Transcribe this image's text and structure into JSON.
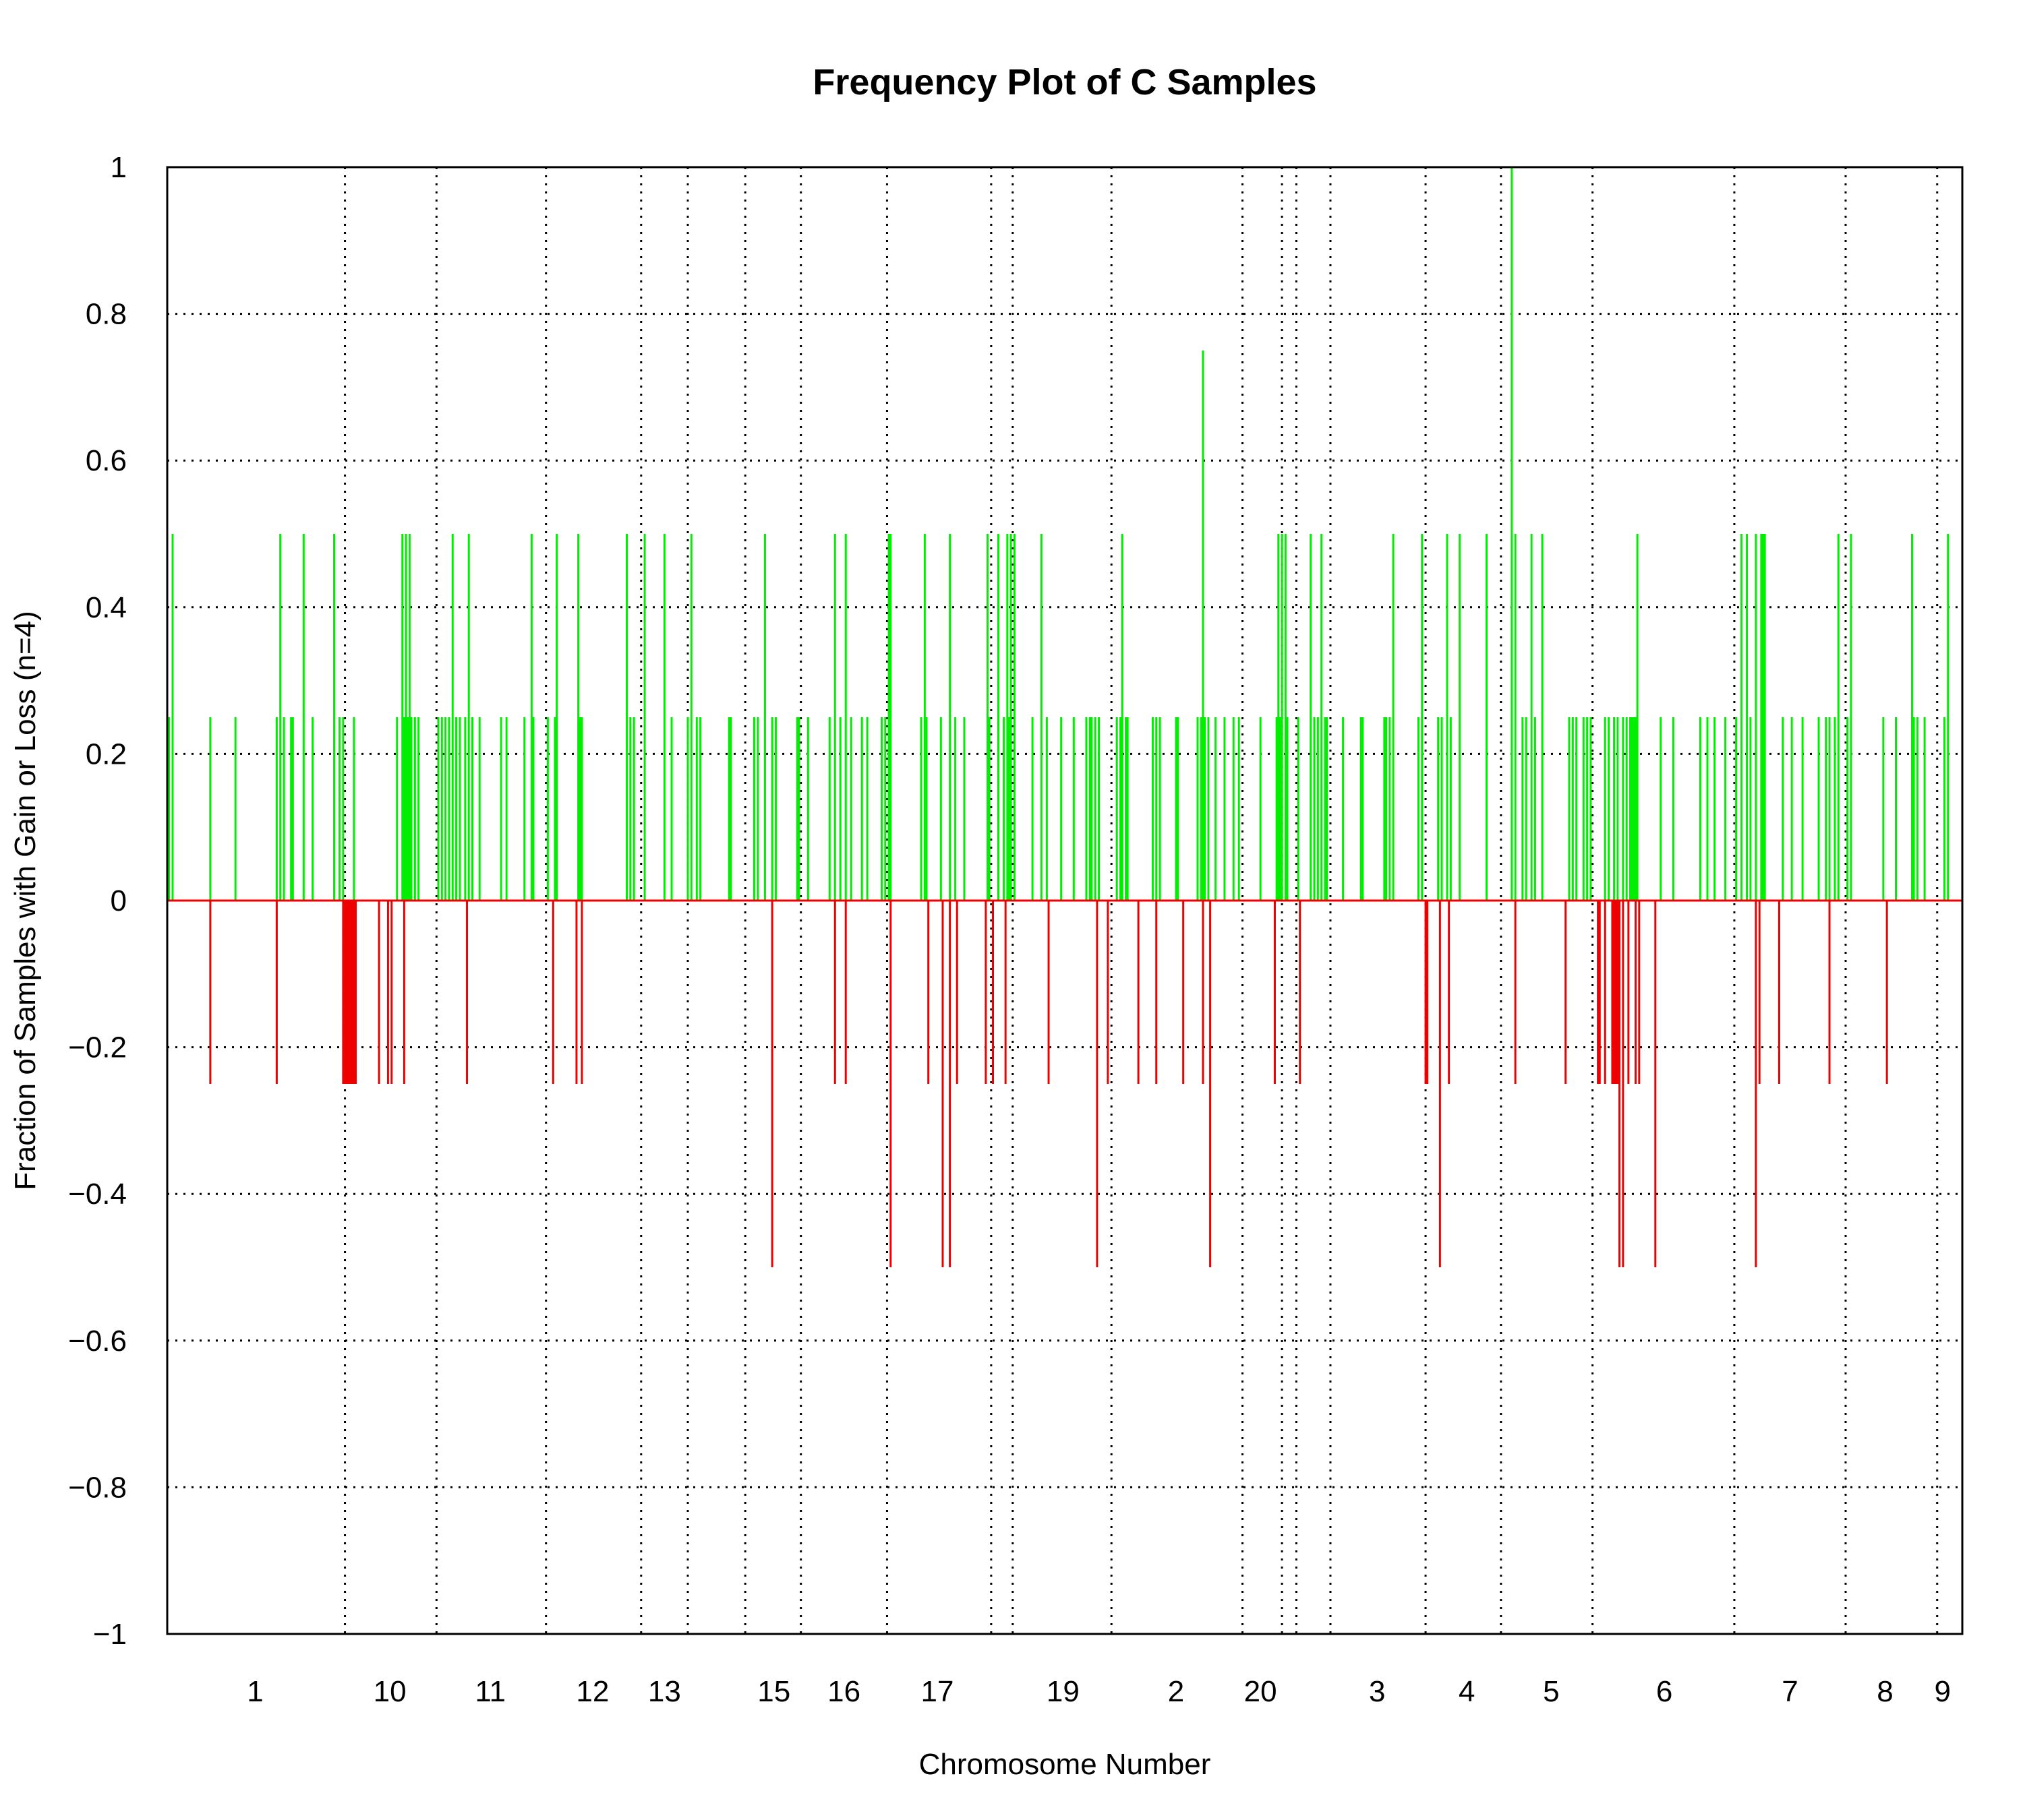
{
  "chart_data": {
    "type": "bar",
    "title": "Frequency Plot of C Samples",
    "xlabel": "Chromosome Number",
    "ylabel": "Fraction of Samples with Gain or Loss (n=4)",
    "ylim": [
      -1,
      1
    ],
    "yticks": [
      1,
      0.8,
      0.6,
      0.4,
      0.2,
      0,
      -0.2,
      -0.4,
      -0.6,
      -0.8,
      -1
    ],
    "ytick_labels": [
      "1",
      "0.8",
      "0.6",
      "0.4",
      "0.2",
      "0",
      "−0.2",
      "−0.4",
      "−0.6",
      "−0.8",
      "−1"
    ],
    "grid": true,
    "colors": {
      "gain": "#00ee00",
      "loss": "#ee0000"
    },
    "chromosome_labels": [
      {
        "label": "1",
        "pos": 0.049
      },
      {
        "label": "10",
        "pos": 0.124
      },
      {
        "label": "11",
        "pos": 0.18
      },
      {
        "label": "12",
        "pos": 0.237
      },
      {
        "label": "13",
        "pos": 0.277
      },
      {
        "label": "15",
        "pos": 0.338
      },
      {
        "label": "16",
        "pos": 0.377
      },
      {
        "label": "17",
        "pos": 0.429
      },
      {
        "label": "19",
        "pos": 0.499
      },
      {
        "label": "2",
        "pos": 0.562
      },
      {
        "label": "20",
        "pos": 0.609
      },
      {
        "label": "3",
        "pos": 0.674
      },
      {
        "label": "4",
        "pos": 0.724
      },
      {
        "label": "5",
        "pos": 0.771
      },
      {
        "label": "6",
        "pos": 0.834
      },
      {
        "label": "7",
        "pos": 0.904
      },
      {
        "label": "8",
        "pos": 0.957
      },
      {
        "label": "9",
        "pos": 0.989
      }
    ],
    "chromosome_boundaries": [
      0.099,
      0.15,
      0.211,
      0.264,
      0.29,
      0.322,
      0.353,
      0.401,
      0.459,
      0.471,
      0.526,
      0.599,
      0.621,
      0.629,
      0.648,
      0.701,
      0.743,
      0.794,
      0.873,
      0.935,
      0.986
    ],
    "gain": [
      {
        "x": 0.001,
        "y": 0.25
      },
      {
        "x": 0.003,
        "y": 0.5
      },
      {
        "x": 0.024,
        "y": 0.25
      },
      {
        "x": 0.038,
        "y": 0.25
      },
      {
        "x": 0.061,
        "y": 0.25
      },
      {
        "x": 0.063,
        "y": 0.5
      },
      {
        "x": 0.065,
        "y": 0.25
      },
      {
        "x": 0.069,
        "y": 0.25
      },
      {
        "x": 0.07,
        "y": 0.25
      },
      {
        "x": 0.076,
        "y": 0.5
      },
      {
        "x": 0.081,
        "y": 0.25
      },
      {
        "x": 0.093,
        "y": 0.5
      },
      {
        "x": 0.096,
        "y": 0.25
      },
      {
        "x": 0.098,
        "y": 0.25
      },
      {
        "x": 0.104,
        "y": 0.25
      },
      {
        "x": 0.128,
        "y": 0.25
      },
      {
        "x": 0.131,
        "y": 0.5
      },
      {
        "x": 0.132,
        "y": 0.25
      },
      {
        "x": 0.133,
        "y": 0.5
      },
      {
        "x": 0.134,
        "y": 0.25
      },
      {
        "x": 0.135,
        "y": 0.5
      },
      {
        "x": 0.136,
        "y": 0.25
      },
      {
        "x": 0.138,
        "y": 0.25
      },
      {
        "x": 0.14,
        "y": 0.25
      },
      {
        "x": 0.151,
        "y": 0.25
      },
      {
        "x": 0.153,
        "y": 0.25
      },
      {
        "x": 0.155,
        "y": 0.25
      },
      {
        "x": 0.157,
        "y": 0.25
      },
      {
        "x": 0.159,
        "y": 0.5
      },
      {
        "x": 0.161,
        "y": 0.25
      },
      {
        "x": 0.163,
        "y": 0.25
      },
      {
        "x": 0.166,
        "y": 0.25
      },
      {
        "x": 0.168,
        "y": 0.5
      },
      {
        "x": 0.17,
        "y": 0.25
      },
      {
        "x": 0.174,
        "y": 0.25
      },
      {
        "x": 0.186,
        "y": 0.25
      },
      {
        "x": 0.189,
        "y": 0.25
      },
      {
        "x": 0.199,
        "y": 0.25
      },
      {
        "x": 0.203,
        "y": 0.5
      },
      {
        "x": 0.204,
        "y": 0.25
      },
      {
        "x": 0.212,
        "y": 0.25
      },
      {
        "x": 0.216,
        "y": 0.25
      },
      {
        "x": 0.217,
        "y": 0.5
      },
      {
        "x": 0.229,
        "y": 0.5
      },
      {
        "x": 0.23,
        "y": 0.25
      },
      {
        "x": 0.231,
        "y": 0.25
      },
      {
        "x": 0.256,
        "y": 0.5
      },
      {
        "x": 0.258,
        "y": 0.25
      },
      {
        "x": 0.26,
        "y": 0.25
      },
      {
        "x": 0.266,
        "y": 0.5
      },
      {
        "x": 0.277,
        "y": 0.5
      },
      {
        "x": 0.281,
        "y": 0.25
      },
      {
        "x": 0.29,
        "y": 0.25
      },
      {
        "x": 0.292,
        "y": 0.5
      },
      {
        "x": 0.295,
        "y": 0.25
      },
      {
        "x": 0.297,
        "y": 0.25
      },
      {
        "x": 0.313,
        "y": 0.25
      },
      {
        "x": 0.314,
        "y": 0.25
      },
      {
        "x": 0.327,
        "y": 0.25
      },
      {
        "x": 0.329,
        "y": 0.25
      },
      {
        "x": 0.333,
        "y": 0.5
      },
      {
        "x": 0.337,
        "y": 0.25
      },
      {
        "x": 0.339,
        "y": 0.25
      },
      {
        "x": 0.351,
        "y": 0.25
      },
      {
        "x": 0.352,
        "y": 0.25
      },
      {
        "x": 0.357,
        "y": 0.25
      },
      {
        "x": 0.369,
        "y": 0.25
      },
      {
        "x": 0.372,
        "y": 0.5
      },
      {
        "x": 0.375,
        "y": 0.25
      },
      {
        "x": 0.378,
        "y": 0.5
      },
      {
        "x": 0.381,
        "y": 0.25
      },
      {
        "x": 0.387,
        "y": 0.25
      },
      {
        "x": 0.39,
        "y": 0.25
      },
      {
        "x": 0.398,
        "y": 0.25
      },
      {
        "x": 0.4,
        "y": 0.25
      },
      {
        "x": 0.402,
        "y": 0.5
      },
      {
        "x": 0.403,
        "y": 0.5
      },
      {
        "x": 0.42,
        "y": 0.25
      },
      {
        "x": 0.422,
        "y": 0.5
      },
      {
        "x": 0.423,
        "y": 0.25
      },
      {
        "x": 0.431,
        "y": 0.25
      },
      {
        "x": 0.436,
        "y": 0.5
      },
      {
        "x": 0.439,
        "y": 0.25
      },
      {
        "x": 0.444,
        "y": 0.25
      },
      {
        "x": 0.457,
        "y": 0.5
      },
      {
        "x": 0.458,
        "y": 0.25
      },
      {
        "x": 0.463,
        "y": 0.5
      },
      {
        "x": 0.466,
        "y": 0.25
      },
      {
        "x": 0.468,
        "y": 0.5
      },
      {
        "x": 0.469,
        "y": 0.25
      },
      {
        "x": 0.47,
        "y": 0.5
      },
      {
        "x": 0.472,
        "y": 0.5
      },
      {
        "x": 0.482,
        "y": 0.25
      },
      {
        "x": 0.487,
        "y": 0.5
      },
      {
        "x": 0.49,
        "y": 0.25
      },
      {
        "x": 0.498,
        "y": 0.25
      },
      {
        "x": 0.505,
        "y": 0.25
      },
      {
        "x": 0.512,
        "y": 0.25
      },
      {
        "x": 0.514,
        "y": 0.25
      },
      {
        "x": 0.515,
        "y": 0.25
      },
      {
        "x": 0.517,
        "y": 0.25
      },
      {
        "x": 0.519,
        "y": 0.25
      },
      {
        "x": 0.529,
        "y": 0.25
      },
      {
        "x": 0.531,
        "y": 0.25
      },
      {
        "x": 0.532,
        "y": 0.5
      },
      {
        "x": 0.534,
        "y": 0.25
      },
      {
        "x": 0.535,
        "y": 0.25
      },
      {
        "x": 0.549,
        "y": 0.25
      },
      {
        "x": 0.551,
        "y": 0.25
      },
      {
        "x": 0.553,
        "y": 0.25
      },
      {
        "x": 0.562,
        "y": 0.25
      },
      {
        "x": 0.563,
        "y": 0.25
      },
      {
        "x": 0.574,
        "y": 0.25
      },
      {
        "x": 0.576,
        "y": 0.25
      },
      {
        "x": 0.577,
        "y": 0.75
      },
      {
        "x": 0.578,
        "y": 0.25
      },
      {
        "x": 0.58,
        "y": 0.25
      },
      {
        "x": 0.584,
        "y": 0.25
      },
      {
        "x": 0.589,
        "y": 0.25
      },
      {
        "x": 0.594,
        "y": 0.25
      },
      {
        "x": 0.597,
        "y": 0.25
      },
      {
        "x": 0.609,
        "y": 0.25
      },
      {
        "x": 0.618,
        "y": 0.25
      },
      {
        "x": 0.619,
        "y": 0.5
      },
      {
        "x": 0.62,
        "y": 0.25
      },
      {
        "x": 0.621,
        "y": 0.5
      },
      {
        "x": 0.623,
        "y": 0.5
      },
      {
        "x": 0.624,
        "y": 0.25
      },
      {
        "x": 0.63,
        "y": 0.25
      },
      {
        "x": 0.637,
        "y": 0.5
      },
      {
        "x": 0.639,
        "y": 0.25
      },
      {
        "x": 0.641,
        "y": 0.25
      },
      {
        "x": 0.643,
        "y": 0.5
      },
      {
        "x": 0.645,
        "y": 0.25
      },
      {
        "x": 0.646,
        "y": 0.25
      },
      {
        "x": 0.655,
        "y": 0.25
      },
      {
        "x": 0.665,
        "y": 0.25
      },
      {
        "x": 0.666,
        "y": 0.25
      },
      {
        "x": 0.678,
        "y": 0.25
      },
      {
        "x": 0.679,
        "y": 0.25
      },
      {
        "x": 0.681,
        "y": 0.25
      },
      {
        "x": 0.683,
        "y": 0.5
      },
      {
        "x": 0.697,
        "y": 0.25
      },
      {
        "x": 0.699,
        "y": 0.5
      },
      {
        "x": 0.708,
        "y": 0.25
      },
      {
        "x": 0.71,
        "y": 0.25
      },
      {
        "x": 0.713,
        "y": 0.5
      },
      {
        "x": 0.715,
        "y": 0.25
      },
      {
        "x": 0.72,
        "y": 0.5
      },
      {
        "x": 0.735,
        "y": 0.5
      },
      {
        "x": 0.749,
        "y": 1.0
      },
      {
        "x": 0.751,
        "y": 0.5
      },
      {
        "x": 0.755,
        "y": 0.25
      },
      {
        "x": 0.757,
        "y": 0.25
      },
      {
        "x": 0.76,
        "y": 0.5
      },
      {
        "x": 0.762,
        "y": 0.25
      },
      {
        "x": 0.766,
        "y": 0.5
      },
      {
        "x": 0.781,
        "y": 0.25
      },
      {
        "x": 0.783,
        "y": 0.25
      },
      {
        "x": 0.785,
        "y": 0.25
      },
      {
        "x": 0.789,
        "y": 0.25
      },
      {
        "x": 0.791,
        "y": 0.25
      },
      {
        "x": 0.793,
        "y": 0.25
      },
      {
        "x": 0.801,
        "y": 0.25
      },
      {
        "x": 0.803,
        "y": 0.25
      },
      {
        "x": 0.806,
        "y": 0.25
      },
      {
        "x": 0.808,
        "y": 0.25
      },
      {
        "x": 0.811,
        "y": 0.25
      },
      {
        "x": 0.813,
        "y": 0.25
      },
      {
        "x": 0.815,
        "y": 0.25
      },
      {
        "x": 0.816,
        "y": 0.25
      },
      {
        "x": 0.817,
        "y": 0.25
      },
      {
        "x": 0.818,
        "y": 0.25
      },
      {
        "x": 0.819,
        "y": 0.5
      },
      {
        "x": 0.832,
        "y": 0.25
      },
      {
        "x": 0.839,
        "y": 0.25
      },
      {
        "x": 0.854,
        "y": 0.25
      },
      {
        "x": 0.858,
        "y": 0.25
      },
      {
        "x": 0.862,
        "y": 0.25
      },
      {
        "x": 0.868,
        "y": 0.25
      },
      {
        "x": 0.874,
        "y": 0.25
      },
      {
        "x": 0.877,
        "y": 0.5
      },
      {
        "x": 0.88,
        "y": 0.5
      },
      {
        "x": 0.882,
        "y": 0.25
      },
      {
        "x": 0.885,
        "y": 0.5
      },
      {
        "x": 0.888,
        "y": 0.5
      },
      {
        "x": 0.889,
        "y": 0.5
      },
      {
        "x": 0.89,
        "y": 0.5
      },
      {
        "x": 0.9,
        "y": 0.25
      },
      {
        "x": 0.911,
        "y": 0.25
      },
      {
        "x": 0.905,
        "y": 0.25
      },
      {
        "x": 0.92,
        "y": 0.25
      },
      {
        "x": 0.924,
        "y": 0.25
      },
      {
        "x": 0.926,
        "y": 0.25
      },
      {
        "x": 0.929,
        "y": 0.25
      },
      {
        "x": 0.931,
        "y": 0.5
      },
      {
        "x": 0.936,
        "y": 0.25
      },
      {
        "x": 0.938,
        "y": 0.5
      },
      {
        "x": 0.956,
        "y": 0.25
      },
      {
        "x": 0.963,
        "y": 0.25
      },
      {
        "x": 0.972,
        "y": 0.5
      },
      {
        "x": 0.973,
        "y": 0.25
      },
      {
        "x": 0.975,
        "y": 0.25
      },
      {
        "x": 0.979,
        "y": 0.25
      },
      {
        "x": 0.99,
        "y": 0.25
      },
      {
        "x": 0.992,
        "y": 0.5
      }
    ],
    "loss": [
      {
        "x": 0.024,
        "y": -0.25
      },
      {
        "x": 0.061,
        "y": -0.25
      },
      {
        "x": 0.098,
        "y": -0.25
      },
      {
        "x": 0.099,
        "y": -0.25
      },
      {
        "x": 0.1,
        "y": -0.25
      },
      {
        "x": 0.101,
        "y": -0.25
      },
      {
        "x": 0.102,
        "y": -0.25
      },
      {
        "x": 0.103,
        "y": -0.25
      },
      {
        "x": 0.104,
        "y": -0.25
      },
      {
        "x": 0.105,
        "y": -0.25
      },
      {
        "x": 0.118,
        "y": -0.25
      },
      {
        "x": 0.123,
        "y": -0.25
      },
      {
        "x": 0.125,
        "y": -0.25
      },
      {
        "x": 0.132,
        "y": -0.25
      },
      {
        "x": 0.167,
        "y": -0.25
      },
      {
        "x": 0.215,
        "y": -0.25
      },
      {
        "x": 0.228,
        "y": -0.25
      },
      {
        "x": 0.231,
        "y": -0.25
      },
      {
        "x": 0.337,
        "y": -0.5
      },
      {
        "x": 0.372,
        "y": -0.25
      },
      {
        "x": 0.378,
        "y": -0.25
      },
      {
        "x": 0.403,
        "y": -0.5
      },
      {
        "x": 0.424,
        "y": -0.25
      },
      {
        "x": 0.432,
        "y": -0.5
      },
      {
        "x": 0.436,
        "y": -0.5
      },
      {
        "x": 0.44,
        "y": -0.25
      },
      {
        "x": 0.456,
        "y": -0.25
      },
      {
        "x": 0.46,
        "y": -0.25
      },
      {
        "x": 0.467,
        "y": -0.25
      },
      {
        "x": 0.491,
        "y": -0.25
      },
      {
        "x": 0.518,
        "y": -0.5
      },
      {
        "x": 0.524,
        "y": -0.25
      },
      {
        "x": 0.541,
        "y": -0.25
      },
      {
        "x": 0.551,
        "y": -0.25
      },
      {
        "x": 0.566,
        "y": -0.25
      },
      {
        "x": 0.577,
        "y": -0.25
      },
      {
        "x": 0.581,
        "y": -0.5
      },
      {
        "x": 0.617,
        "y": -0.25
      },
      {
        "x": 0.631,
        "y": -0.25
      },
      {
        "x": 0.701,
        "y": -0.25
      },
      {
        "x": 0.702,
        "y": -0.25
      },
      {
        "x": 0.709,
        "y": -0.5
      },
      {
        "x": 0.714,
        "y": -0.25
      },
      {
        "x": 0.751,
        "y": -0.25
      },
      {
        "x": 0.779,
        "y": -0.25
      },
      {
        "x": 0.797,
        "y": -0.25
      },
      {
        "x": 0.798,
        "y": -0.25
      },
      {
        "x": 0.801,
        "y": -0.25
      },
      {
        "x": 0.805,
        "y": -0.25
      },
      {
        "x": 0.806,
        "y": -0.25
      },
      {
        "x": 0.807,
        "y": -0.25
      },
      {
        "x": 0.808,
        "y": -0.25
      },
      {
        "x": 0.809,
        "y": -0.5
      },
      {
        "x": 0.811,
        "y": -0.5
      },
      {
        "x": 0.814,
        "y": -0.25
      },
      {
        "x": 0.818,
        "y": -0.25
      },
      {
        "x": 0.82,
        "y": -0.25
      },
      {
        "x": 0.829,
        "y": -0.5
      },
      {
        "x": 0.885,
        "y": -0.5
      },
      {
        "x": 0.887,
        "y": -0.25
      },
      {
        "x": 0.898,
        "y": -0.25
      },
      {
        "x": 0.926,
        "y": -0.25
      },
      {
        "x": 0.958,
        "y": -0.25
      }
    ]
  }
}
